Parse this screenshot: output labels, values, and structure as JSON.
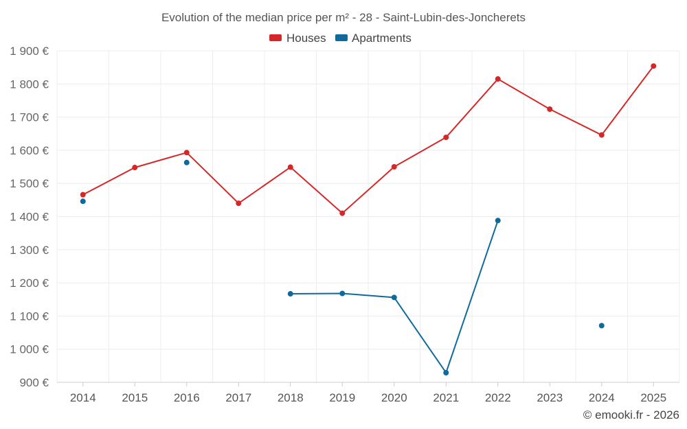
{
  "chart_data": {
    "type": "line",
    "title": "Evolution of the median price per m² - 28 - Saint-Lubin-des-Joncherets",
    "categories": [
      "2014",
      "2015",
      "2016",
      "2017",
      "2018",
      "2019",
      "2020",
      "2021",
      "2022",
      "2023",
      "2024",
      "2025"
    ],
    "series": [
      {
        "name": "Houses",
        "color": "#d62728",
        "values": [
          1466,
          1548,
          1593,
          1440,
          1549,
          1410,
          1550,
          1639,
          1815,
          1724,
          1646,
          1854
        ]
      },
      {
        "name": "Apartments",
        "color": "#0f6a9b",
        "values": [
          1446,
          null,
          1563,
          null,
          1167,
          1168,
          1156,
          929,
          1388,
          null,
          1071,
          null
        ]
      }
    ],
    "ylim": [
      900,
      1900
    ],
    "yticks": [
      900,
      1000,
      1100,
      1200,
      1300,
      1400,
      1500,
      1600,
      1700,
      1800,
      1900
    ],
    "ytick_labels": [
      "900 €",
      "1 000 €",
      "1 100 €",
      "1 200 €",
      "1 300 €",
      "1 400 €",
      "1 500 €",
      "1 600 €",
      "1 700 €",
      "1 800 €",
      "1 900 €"
    ],
    "xlabel": "",
    "ylabel": "",
    "grid": true,
    "legend_position": "top-center"
  },
  "credit": "© emooki.fr - 2026"
}
